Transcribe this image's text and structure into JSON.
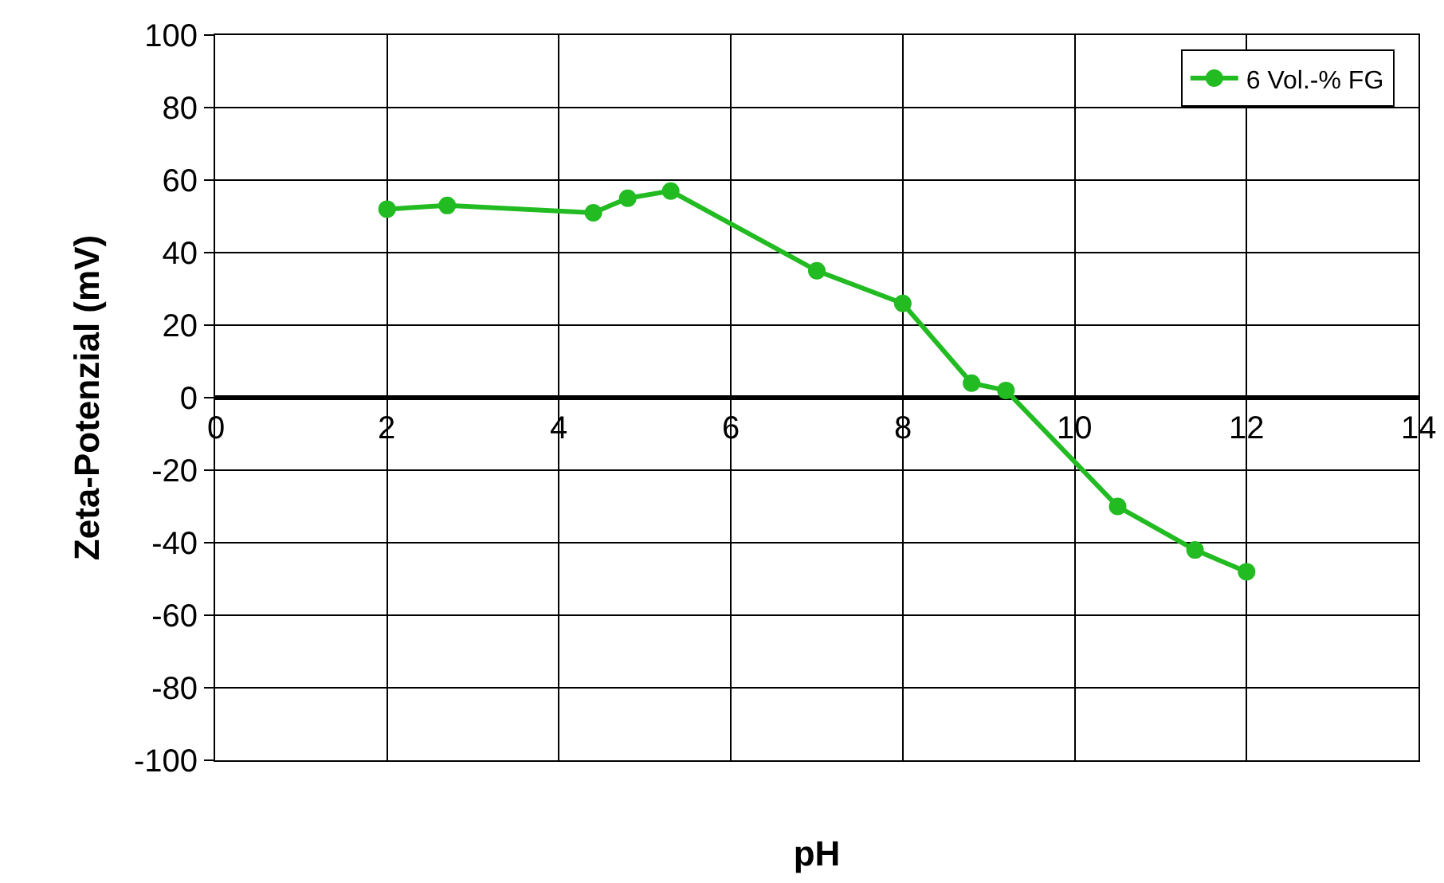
{
  "chart_data": {
    "type": "line",
    "xlabel": "pH",
    "ylabel": "Zeta-Potenzial (mV)",
    "series": [
      {
        "name": "6 Vol.-% FG",
        "color": "#22bb22",
        "x": [
          2,
          2.7,
          4.4,
          4.8,
          5.3,
          7,
          8,
          8.8,
          9.2,
          10.5,
          11.4,
          12
        ],
        "values": [
          52,
          53,
          51,
          55,
          57,
          35,
          26,
          4,
          2,
          -30,
          -42,
          -48
        ]
      }
    ],
    "xlim": [
      0,
      14
    ],
    "xticks": [
      0,
      2,
      4,
      6,
      8,
      10,
      12,
      14
    ],
    "ylim": [
      -100,
      100
    ],
    "yticks": [
      -100,
      -80,
      -60,
      -40,
      -20,
      0,
      20,
      40,
      60,
      80,
      100
    ],
    "grid": true,
    "legend": "top right",
    "marker": "circle",
    "line_style": "solid"
  }
}
